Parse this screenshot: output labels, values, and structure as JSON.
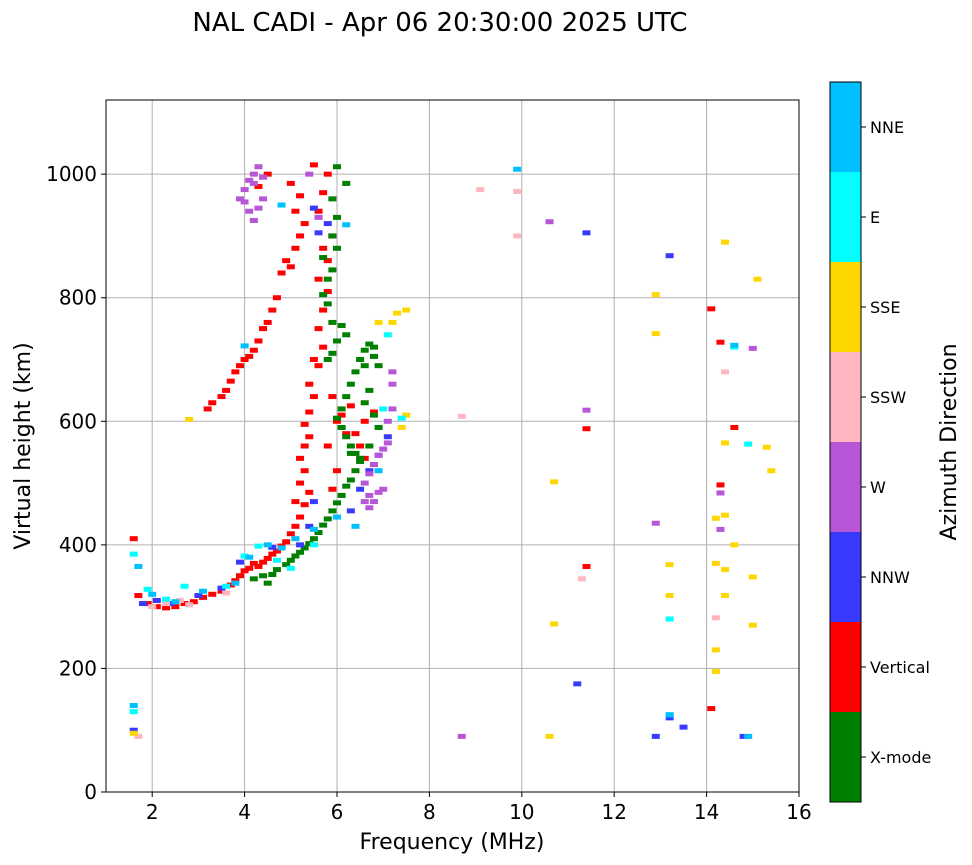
{
  "chart_data": {
    "type": "scatter",
    "title": "NAL CADI - Apr 06 20:30:00 2025 UTC",
    "xlabel": "Frequency (MHz)",
    "ylabel": "Virtual height (km)",
    "xlim": [
      1,
      16
    ],
    "ylim": [
      0,
      1120
    ],
    "xticks": [
      2,
      4,
      6,
      8,
      10,
      12,
      14,
      16
    ],
    "yticks": [
      0,
      200,
      400,
      600,
      800,
      1000
    ],
    "grid": true,
    "colorbar": {
      "label": "Azimuth Direction",
      "categories": [
        {
          "name": "X-mode",
          "color": "#008000"
        },
        {
          "name": "Vertical",
          "color": "#ff0000"
        },
        {
          "name": "NNW",
          "color": "#3a3aff"
        },
        {
          "name": "W",
          "color": "#b856d8"
        },
        {
          "name": "SSW",
          "color": "#ffb6c1"
        },
        {
          "name": "SSE",
          "color": "#ffd700"
        },
        {
          "name": "E",
          "color": "#00ffff"
        },
        {
          "name": "NNE",
          "color": "#00bfff"
        }
      ]
    },
    "series": [
      {
        "name": "Vertical",
        "points": [
          [
            1.6,
            410
          ],
          [
            1.7,
            318
          ],
          [
            1.9,
            305
          ],
          [
            2.1,
            300
          ],
          [
            2.3,
            298
          ],
          [
            2.5,
            300
          ],
          [
            2.7,
            305
          ],
          [
            2.9,
            308
          ],
          [
            3.1,
            315
          ],
          [
            3.3,
            320
          ],
          [
            3.5,
            325
          ],
          [
            3.7,
            335
          ],
          [
            3.8,
            342
          ],
          [
            3.9,
            350
          ],
          [
            4.0,
            358
          ],
          [
            4.1,
            362
          ],
          [
            4.2,
            370
          ],
          [
            4.3,
            365
          ],
          [
            4.4,
            372
          ],
          [
            4.5,
            378
          ],
          [
            4.6,
            385
          ],
          [
            4.7,
            390
          ],
          [
            4.8,
            398
          ],
          [
            4.9,
            405
          ],
          [
            5.0,
            418
          ],
          [
            5.1,
            430
          ],
          [
            5.2,
            445
          ],
          [
            5.3,
            465
          ],
          [
            5.4,
            485
          ],
          [
            5.1,
            470
          ],
          [
            5.2,
            500
          ],
          [
            5.3,
            520
          ],
          [
            5.2,
            540
          ],
          [
            5.3,
            560
          ],
          [
            5.4,
            575
          ],
          [
            5.3,
            595
          ],
          [
            5.4,
            615
          ],
          [
            5.5,
            640
          ],
          [
            5.4,
            660
          ],
          [
            5.6,
            690
          ],
          [
            5.5,
            700
          ],
          [
            5.7,
            720
          ],
          [
            5.6,
            750
          ],
          [
            5.7,
            780
          ],
          [
            5.8,
            810
          ],
          [
            5.6,
            830
          ],
          [
            5.8,
            860
          ],
          [
            5.7,
            880
          ],
          [
            5.9,
            900
          ],
          [
            5.6,
            940
          ],
          [
            5.7,
            970
          ],
          [
            5.8,
            1000
          ],
          [
            5.5,
            1015
          ],
          [
            5.0,
            850
          ],
          [
            5.1,
            880
          ],
          [
            5.2,
            900
          ],
          [
            5.3,
            920
          ],
          [
            5.1,
            940
          ],
          [
            5.2,
            965
          ],
          [
            5.0,
            985
          ],
          [
            4.9,
            860
          ],
          [
            4.8,
            840
          ],
          [
            4.7,
            800
          ],
          [
            4.6,
            780
          ],
          [
            4.5,
            760
          ],
          [
            4.4,
            750
          ],
          [
            4.3,
            730
          ],
          [
            4.2,
            715
          ],
          [
            4.1,
            705
          ],
          [
            4.0,
            700
          ],
          [
            3.9,
            690
          ],
          [
            3.8,
            680
          ],
          [
            3.7,
            665
          ],
          [
            3.6,
            650
          ],
          [
            3.5,
            640
          ],
          [
            3.3,
            630
          ],
          [
            3.2,
            620
          ],
          [
            6.0,
            600
          ],
          [
            6.2,
            580
          ],
          [
            6.5,
            560
          ],
          [
            6.6,
            540
          ],
          [
            6.8,
            530
          ],
          [
            6.4,
            580
          ],
          [
            6.6,
            600
          ],
          [
            6.8,
            615
          ],
          [
            5.9,
            640
          ],
          [
            6.1,
            610
          ],
          [
            6.3,
            625
          ],
          [
            5.8,
            560
          ],
          [
            6.0,
            520
          ],
          [
            5.9,
            490
          ],
          [
            4.3,
            980
          ],
          [
            4.5,
            1000
          ],
          [
            11.4,
            365
          ],
          [
            11.4,
            588
          ],
          [
            14.1,
            782
          ],
          [
            14.3,
            728
          ],
          [
            14.6,
            590
          ],
          [
            14.3,
            497
          ],
          [
            14.1,
            135
          ]
        ]
      },
      {
        "name": "X-mode",
        "points": [
          [
            4.2,
            345
          ],
          [
            4.4,
            350
          ],
          [
            4.5,
            338
          ],
          [
            4.6,
            352
          ],
          [
            4.7,
            360
          ],
          [
            4.9,
            368
          ],
          [
            5.0,
            375
          ],
          [
            5.1,
            382
          ],
          [
            5.2,
            388
          ],
          [
            5.3,
            395
          ],
          [
            5.4,
            402
          ],
          [
            5.5,
            410
          ],
          [
            5.6,
            420
          ],
          [
            5.7,
            432
          ],
          [
            5.8,
            442
          ],
          [
            5.9,
            455
          ],
          [
            6.0,
            468
          ],
          [
            6.1,
            480
          ],
          [
            6.2,
            495
          ],
          [
            6.3,
            505
          ],
          [
            6.4,
            520
          ],
          [
            6.5,
            535
          ],
          [
            6.4,
            548
          ],
          [
            6.3,
            560
          ],
          [
            6.2,
            575
          ],
          [
            6.1,
            590
          ],
          [
            6.0,
            605
          ],
          [
            6.1,
            620
          ],
          [
            6.2,
            640
          ],
          [
            6.3,
            660
          ],
          [
            6.4,
            680
          ],
          [
            6.5,
            700
          ],
          [
            6.6,
            715
          ],
          [
            6.7,
            725
          ],
          [
            6.8,
            705
          ],
          [
            6.9,
            690
          ],
          [
            6.7,
            650
          ],
          [
            6.6,
            630
          ],
          [
            6.8,
            610
          ],
          [
            6.9,
            590
          ],
          [
            6.2,
            740
          ],
          [
            6.1,
            755
          ],
          [
            6.0,
            730
          ],
          [
            5.9,
            710
          ],
          [
            5.8,
            700
          ],
          [
            5.9,
            760
          ],
          [
            5.8,
            790
          ],
          [
            5.7,
            805
          ],
          [
            5.8,
            830
          ],
          [
            5.9,
            845
          ],
          [
            5.7,
            865
          ],
          [
            6.0,
            880
          ],
          [
            5.9,
            900
          ],
          [
            6.0,
            930
          ],
          [
            5.9,
            960
          ],
          [
            6.0,
            1012
          ],
          [
            6.2,
            985
          ],
          [
            6.6,
            690
          ],
          [
            6.8,
            720
          ],
          [
            6.7,
            560
          ],
          [
            6.5,
            540
          ],
          [
            6.3,
            548
          ]
        ]
      },
      {
        "name": "NNW",
        "points": [
          [
            1.6,
            100
          ],
          [
            1.8,
            305
          ],
          [
            2.1,
            310
          ],
          [
            2.4,
            305
          ],
          [
            3.0,
            318
          ],
          [
            3.5,
            330
          ],
          [
            3.9,
            372
          ],
          [
            4.6,
            396
          ],
          [
            5.2,
            400
          ],
          [
            5.4,
            430
          ],
          [
            5.5,
            470
          ],
          [
            6.3,
            455
          ],
          [
            6.5,
            490
          ],
          [
            6.7,
            520
          ],
          [
            6.9,
            545
          ],
          [
            7.1,
            575
          ],
          [
            5.6,
            905
          ],
          [
            5.8,
            920
          ],
          [
            5.5,
            945
          ],
          [
            11.2,
            175
          ],
          [
            11.4,
            905
          ],
          [
            13.2,
            868
          ],
          [
            13.2,
            120
          ],
          [
            12.9,
            90
          ],
          [
            13.5,
            105
          ],
          [
            14.8,
            90
          ]
        ]
      },
      {
        "name": "W",
        "points": [
          [
            3.9,
            960
          ],
          [
            4.0,
            975
          ],
          [
            4.1,
            990
          ],
          [
            4.2,
            1000
          ],
          [
            4.3,
            1012
          ],
          [
            4.4,
            995
          ],
          [
            4.1,
            940
          ],
          [
            4.2,
            925
          ],
          [
            4.3,
            945
          ],
          [
            4.4,
            960
          ],
          [
            4.0,
            955
          ],
          [
            4.2,
            985
          ],
          [
            6.6,
            500
          ],
          [
            6.7,
            515
          ],
          [
            6.8,
            530
          ],
          [
            6.9,
            545
          ],
          [
            7.0,
            555
          ],
          [
            7.1,
            565
          ],
          [
            6.7,
            480
          ],
          [
            6.8,
            470
          ],
          [
            6.9,
            485
          ],
          [
            7.0,
            490
          ],
          [
            7.1,
            600
          ],
          [
            7.2,
            620
          ],
          [
            7.2,
            660
          ],
          [
            7.2,
            680
          ],
          [
            6.7,
            460
          ],
          [
            6.6,
            470
          ],
          [
            5.6,
            930
          ],
          [
            5.4,
            1000
          ],
          [
            10.6,
            923
          ],
          [
            11.4,
            618
          ],
          [
            8.7,
            90
          ],
          [
            12.9,
            435
          ],
          [
            14.3,
            484
          ],
          [
            14.3,
            425
          ],
          [
            15.0,
            718
          ]
        ]
      },
      {
        "name": "SSW",
        "points": [
          [
            1.7,
            90
          ],
          [
            2.0,
            300
          ],
          [
            2.3,
            305
          ],
          [
            2.6,
            310
          ],
          [
            2.8,
            303
          ],
          [
            3.6,
            322
          ],
          [
            9.1,
            975
          ],
          [
            9.9,
            972
          ],
          [
            9.9,
            900
          ],
          [
            8.7,
            608
          ],
          [
            11.3,
            345
          ],
          [
            14.2,
            282
          ],
          [
            14.4,
            680
          ]
        ]
      },
      {
        "name": "SSE",
        "points": [
          [
            1.6,
            95
          ],
          [
            2.8,
            603
          ],
          [
            7.2,
            760
          ],
          [
            7.3,
            775
          ],
          [
            7.5,
            780
          ],
          [
            7.5,
            610
          ],
          [
            7.4,
            590
          ],
          [
            6.9,
            760
          ],
          [
            10.7,
            502
          ],
          [
            10.7,
            272
          ],
          [
            10.6,
            90
          ],
          [
            12.9,
            805
          ],
          [
            12.9,
            742
          ],
          [
            13.2,
            368
          ],
          [
            13.2,
            318
          ],
          [
            14.4,
            890
          ],
          [
            14.4,
            565
          ],
          [
            14.4,
            448
          ],
          [
            14.4,
            360
          ],
          [
            14.4,
            318
          ],
          [
            14.2,
            443
          ],
          [
            14.2,
            370
          ],
          [
            14.2,
            230
          ],
          [
            14.2,
            195
          ],
          [
            14.6,
            400
          ],
          [
            15.0,
            348
          ],
          [
            15.0,
            270
          ],
          [
            15.1,
            830
          ],
          [
            15.3,
            558
          ],
          [
            15.4,
            520
          ]
        ]
      },
      {
        "name": "E",
        "points": [
          [
            1.6,
            130
          ],
          [
            1.6,
            385
          ],
          [
            1.9,
            328
          ],
          [
            2.3,
            312
          ],
          [
            2.7,
            333
          ],
          [
            3.6,
            333
          ],
          [
            4.0,
            382
          ],
          [
            4.3,
            398
          ],
          [
            4.7,
            375
          ],
          [
            5.0,
            362
          ],
          [
            5.5,
            400
          ],
          [
            7.0,
            620
          ],
          [
            7.1,
            740
          ],
          [
            7.4,
            605
          ],
          [
            13.2,
            280
          ],
          [
            13.2,
            125
          ],
          [
            14.6,
            720
          ],
          [
            14.9,
            563
          ]
        ]
      },
      {
        "name": "NNE",
        "points": [
          [
            1.6,
            140
          ],
          [
            1.7,
            365
          ],
          [
            2.0,
            320
          ],
          [
            2.5,
            308
          ],
          [
            3.1,
            325
          ],
          [
            3.8,
            338
          ],
          [
            4.1,
            380
          ],
          [
            4.5,
            400
          ],
          [
            4.8,
            395
          ],
          [
            5.1,
            410
          ],
          [
            5.5,
            425
          ],
          [
            6.0,
            445
          ],
          [
            6.4,
            430
          ],
          [
            6.9,
            520
          ],
          [
            4.0,
            722
          ],
          [
            4.8,
            950
          ],
          [
            9.9,
            1008
          ],
          [
            6.2,
            918
          ],
          [
            13.2,
            125
          ],
          [
            14.6,
            723
          ],
          [
            14.9,
            90
          ]
        ]
      }
    ]
  }
}
